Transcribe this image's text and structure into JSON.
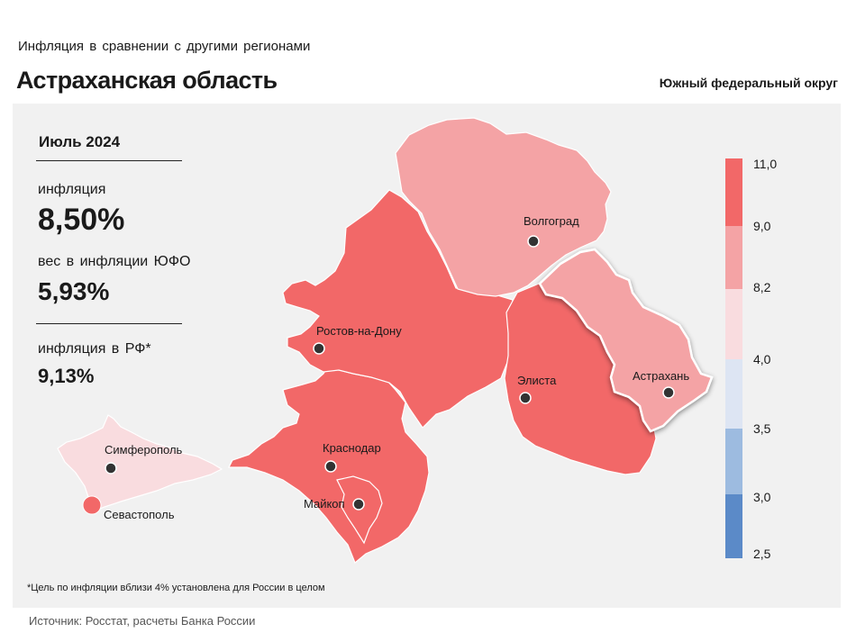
{
  "header": {
    "subtitle": "Инфляция в сравнении с другими регионами",
    "title": "Астраханская область",
    "district": "Южный федеральный округ"
  },
  "info": {
    "period": "Июль 2024",
    "inflation_label": "инфляция",
    "inflation_value": "8,50%",
    "weight_label": "вес в инфляции ЮФО",
    "weight_value": "5,93%",
    "russia_label": "инфляция в РФ*",
    "russia_value": "9,13%"
  },
  "map": {
    "cities": [
      "Волгоград",
      "Ростов-на-Дону",
      "Элиста",
      "Астрахань",
      "Симферополь",
      "Краснодар",
      "Майкоп",
      "Севастополь"
    ],
    "highlighted_region": "Астрахань",
    "colors": {
      "dark_red": "#f26868",
      "light_red": "#f4a3a5",
      "very_light": "#f9dcdf",
      "pale_blue": "#dde5f3",
      "light_blue": "#9dbbe0",
      "blue": "#5b8ac8"
    }
  },
  "legend": {
    "labels": [
      "11,0",
      "9,0",
      "8,2",
      "4,0",
      "3,5",
      "3,0",
      "2,5"
    ]
  },
  "footnote": "*Цель по инфляции вблизи 4% установлена для России в целом",
  "source": "Источник: Росстат, расчеты Банка России"
}
